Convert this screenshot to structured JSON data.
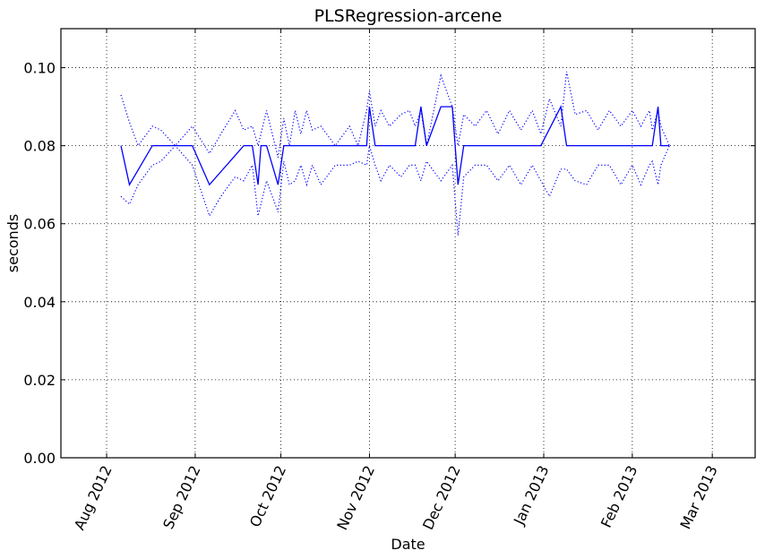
{
  "chart_data": {
    "type": "line",
    "title": "PLSRegression-arcene",
    "xlabel": "Date",
    "ylabel": "seconds",
    "xlim": [
      "2012-07-16",
      "2013-03-16"
    ],
    "ylim": [
      0.0,
      0.11
    ],
    "grid": true,
    "legend": "none",
    "x_ticks": [
      "2012-08-01",
      "2012-09-01",
      "2012-10-01",
      "2012-11-01",
      "2012-12-01",
      "2013-01-01",
      "2013-02-01",
      "2013-03-01"
    ],
    "x_tick_labels": [
      "Aug 2012",
      "Sep 2012",
      "Oct 2012",
      "Nov 2012",
      "Dec 2012",
      "Jan 2013",
      "Feb 2013",
      "Mar 2013"
    ],
    "y_ticks": [
      0.0,
      0.02,
      0.04,
      0.06,
      0.08,
      0.1
    ],
    "y_tick_labels": [
      "0.00",
      "0.02",
      "0.04",
      "0.06",
      "0.08",
      "0.10"
    ],
    "series": [
      {
        "role": "mean",
        "style": "solid",
        "color": "#0000ff",
        "x": [
          "2012-08-06",
          "2012-08-09",
          "2012-08-17",
          "2012-08-31",
          "2012-09-06",
          "2012-09-18",
          "2012-09-21",
          "2012-09-23",
          "2012-09-24",
          "2012-09-26",
          "2012-09-30",
          "2012-10-02",
          "2012-10-31",
          "2012-11-01",
          "2012-11-03",
          "2012-11-17",
          "2012-11-19",
          "2012-11-21",
          "2012-11-26",
          "2012-11-30",
          "2012-12-02",
          "2012-12-04",
          "2012-12-31",
          "2013-01-07",
          "2013-01-09",
          "2013-02-08",
          "2013-02-10",
          "2013-02-11",
          "2013-02-14"
        ],
        "y": [
          0.08,
          0.07,
          0.08,
          0.08,
          0.07,
          0.08,
          0.08,
          0.07,
          0.08,
          0.08,
          0.07,
          0.08,
          0.08,
          0.09,
          0.08,
          0.08,
          0.09,
          0.08,
          0.09,
          0.09,
          0.07,
          0.08,
          0.08,
          0.09,
          0.08,
          0.08,
          0.09,
          0.08,
          0.08
        ]
      },
      {
        "role": "upper",
        "style": "dotted",
        "color": "#0000ff",
        "x": [
          "2012-08-06",
          "2012-08-09",
          "2012-08-12",
          "2012-08-17",
          "2012-08-20",
          "2012-08-25",
          "2012-08-31",
          "2012-09-06",
          "2012-09-10",
          "2012-09-15",
          "2012-09-18",
          "2012-09-21",
          "2012-09-23",
          "2012-09-26",
          "2012-09-30",
          "2012-10-02",
          "2012-10-04",
          "2012-10-06",
          "2012-10-08",
          "2012-10-10",
          "2012-10-12",
          "2012-10-15",
          "2012-10-20",
          "2012-10-25",
          "2012-10-28",
          "2012-10-31",
          "2012-11-01",
          "2012-11-03",
          "2012-11-05",
          "2012-11-08",
          "2012-11-12",
          "2012-11-15",
          "2012-11-17",
          "2012-11-19",
          "2012-11-21",
          "2012-11-26",
          "2012-11-30",
          "2012-12-02",
          "2012-12-04",
          "2012-12-08",
          "2012-12-12",
          "2012-12-16",
          "2012-12-20",
          "2012-12-24",
          "2012-12-28",
          "2012-12-31",
          "2013-01-03",
          "2013-01-07",
          "2013-01-09",
          "2013-01-12",
          "2013-01-16",
          "2013-01-20",
          "2013-01-24",
          "2013-01-28",
          "2013-02-01",
          "2013-02-04",
          "2013-02-07",
          "2013-02-08",
          "2013-02-10",
          "2013-02-11",
          "2013-02-14"
        ],
        "y": [
          0.093,
          0.086,
          0.08,
          0.085,
          0.084,
          0.08,
          0.085,
          0.078,
          0.083,
          0.089,
          0.084,
          0.085,
          0.08,
          0.089,
          0.077,
          0.087,
          0.08,
          0.089,
          0.083,
          0.089,
          0.084,
          0.085,
          0.08,
          0.085,
          0.08,
          0.089,
          0.094,
          0.085,
          0.089,
          0.085,
          0.088,
          0.089,
          0.085,
          0.089,
          0.08,
          0.098,
          0.09,
          0.08,
          0.088,
          0.085,
          0.089,
          0.083,
          0.089,
          0.084,
          0.089,
          0.083,
          0.092,
          0.085,
          0.099,
          0.088,
          0.089,
          0.084,
          0.089,
          0.085,
          0.089,
          0.085,
          0.089,
          0.084,
          0.089,
          0.085,
          0.08
        ]
      },
      {
        "role": "lower",
        "style": "dotted",
        "color": "#0000ff",
        "x": [
          "2012-08-06",
          "2012-08-09",
          "2012-08-12",
          "2012-08-17",
          "2012-08-20",
          "2012-08-25",
          "2012-08-31",
          "2012-09-06",
          "2012-09-10",
          "2012-09-15",
          "2012-09-18",
          "2012-09-21",
          "2012-09-23",
          "2012-09-26",
          "2012-09-30",
          "2012-10-02",
          "2012-10-04",
          "2012-10-06",
          "2012-10-08",
          "2012-10-10",
          "2012-10-12",
          "2012-10-15",
          "2012-10-20",
          "2012-10-25",
          "2012-10-28",
          "2012-10-31",
          "2012-11-01",
          "2012-11-03",
          "2012-11-05",
          "2012-11-08",
          "2012-11-12",
          "2012-11-15",
          "2012-11-17",
          "2012-11-19",
          "2012-11-21",
          "2012-11-26",
          "2012-11-30",
          "2012-12-02",
          "2012-12-04",
          "2012-12-08",
          "2012-12-12",
          "2012-12-16",
          "2012-12-20",
          "2012-12-24",
          "2012-12-28",
          "2012-12-31",
          "2013-01-03",
          "2013-01-07",
          "2013-01-09",
          "2013-01-12",
          "2013-01-16",
          "2013-01-20",
          "2013-01-24",
          "2013-01-28",
          "2013-02-01",
          "2013-02-04",
          "2013-02-07",
          "2013-02-08",
          "2013-02-10",
          "2013-02-11",
          "2013-02-14"
        ],
        "y": [
          0.067,
          0.065,
          0.07,
          0.075,
          0.076,
          0.08,
          0.075,
          0.062,
          0.067,
          0.072,
          0.071,
          0.075,
          0.062,
          0.071,
          0.063,
          0.076,
          0.07,
          0.071,
          0.075,
          0.07,
          0.075,
          0.07,
          0.075,
          0.075,
          0.076,
          0.075,
          0.08,
          0.075,
          0.071,
          0.075,
          0.072,
          0.075,
          0.075,
          0.071,
          0.076,
          0.071,
          0.075,
          0.057,
          0.072,
          0.075,
          0.075,
          0.071,
          0.075,
          0.07,
          0.075,
          0.071,
          0.067,
          0.074,
          0.074,
          0.071,
          0.07,
          0.075,
          0.075,
          0.07,
          0.075,
          0.07,
          0.075,
          0.076,
          0.07,
          0.075,
          0.08
        ]
      }
    ]
  }
}
